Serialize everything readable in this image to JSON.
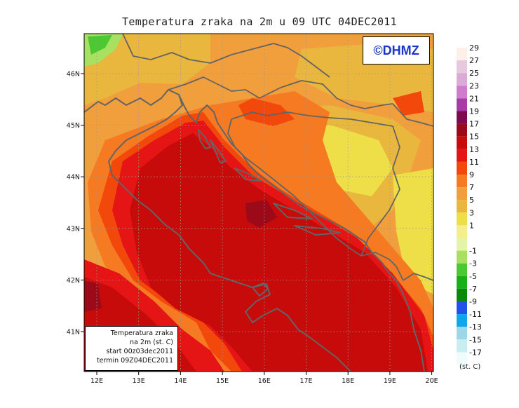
{
  "title": "Temperatura zraka na 2m u 09 UTC 04DEC2011",
  "logo": "©DHMZ",
  "info": {
    "line1": "Temperatura zraka",
    "line2": "na 2m (st. C)",
    "line3": "start 00z03dec2011",
    "line4": "termin 09Z04DEC2011"
  },
  "lon_ticks": [
    "12E",
    "13E",
    "14E",
    "15E",
    "16E",
    "17E",
    "18E",
    "19E",
    "20E"
  ],
  "lat_ticks": [
    "46N",
    "45N",
    "44N",
    "43N",
    "42N",
    "41N"
  ],
  "legend": {
    "unit": "(st. C)",
    "levels": [
      {
        "label": "29",
        "color": "#fdf0e8"
      },
      {
        "label": "27",
        "color": "#e6c9de"
      },
      {
        "label": "25",
        "color": "#dcaad6"
      },
      {
        "label": "23",
        "color": "#d07ccd"
      },
      {
        "label": "21",
        "color": "#a83aa8"
      },
      {
        "label": "19",
        "color": "#7e0a50"
      },
      {
        "label": "17",
        "color": "#9c0a1a"
      },
      {
        "label": "15",
        "color": "#c70a0a"
      },
      {
        "label": "13",
        "color": "#e51515"
      },
      {
        "label": "11",
        "color": "#f2480c"
      },
      {
        "label": "9",
        "color": "#f57a22"
      },
      {
        "label": "7",
        "color": "#f19e3c"
      },
      {
        "label": "5",
        "color": "#e9b63e"
      },
      {
        "label": "3",
        "color": "#eedf48"
      },
      {
        "label": "1",
        "color": "#f4ee8c"
      },
      {
        "label": "",
        "color": "#e4f4a8"
      },
      {
        "label": "-1",
        "color": "#a8e060"
      },
      {
        "label": "-3",
        "color": "#4cc832"
      },
      {
        "label": "-5",
        "color": "#18b018"
      },
      {
        "label": "-7",
        "color": "#0a8a0a"
      },
      {
        "label": "-9",
        "color": "#2252e8"
      },
      {
        "label": "-11",
        "color": "#10a6ec"
      },
      {
        "label": "-13",
        "color": "#9cd6e8"
      },
      {
        "label": "-15",
        "color": "#c8eef2"
      },
      {
        "label": "-17",
        "color": "#eefcfc"
      }
    ]
  },
  "colors": {
    "border": "#646464",
    "grid": "#9a9a9a",
    "frame": "#000000"
  }
}
